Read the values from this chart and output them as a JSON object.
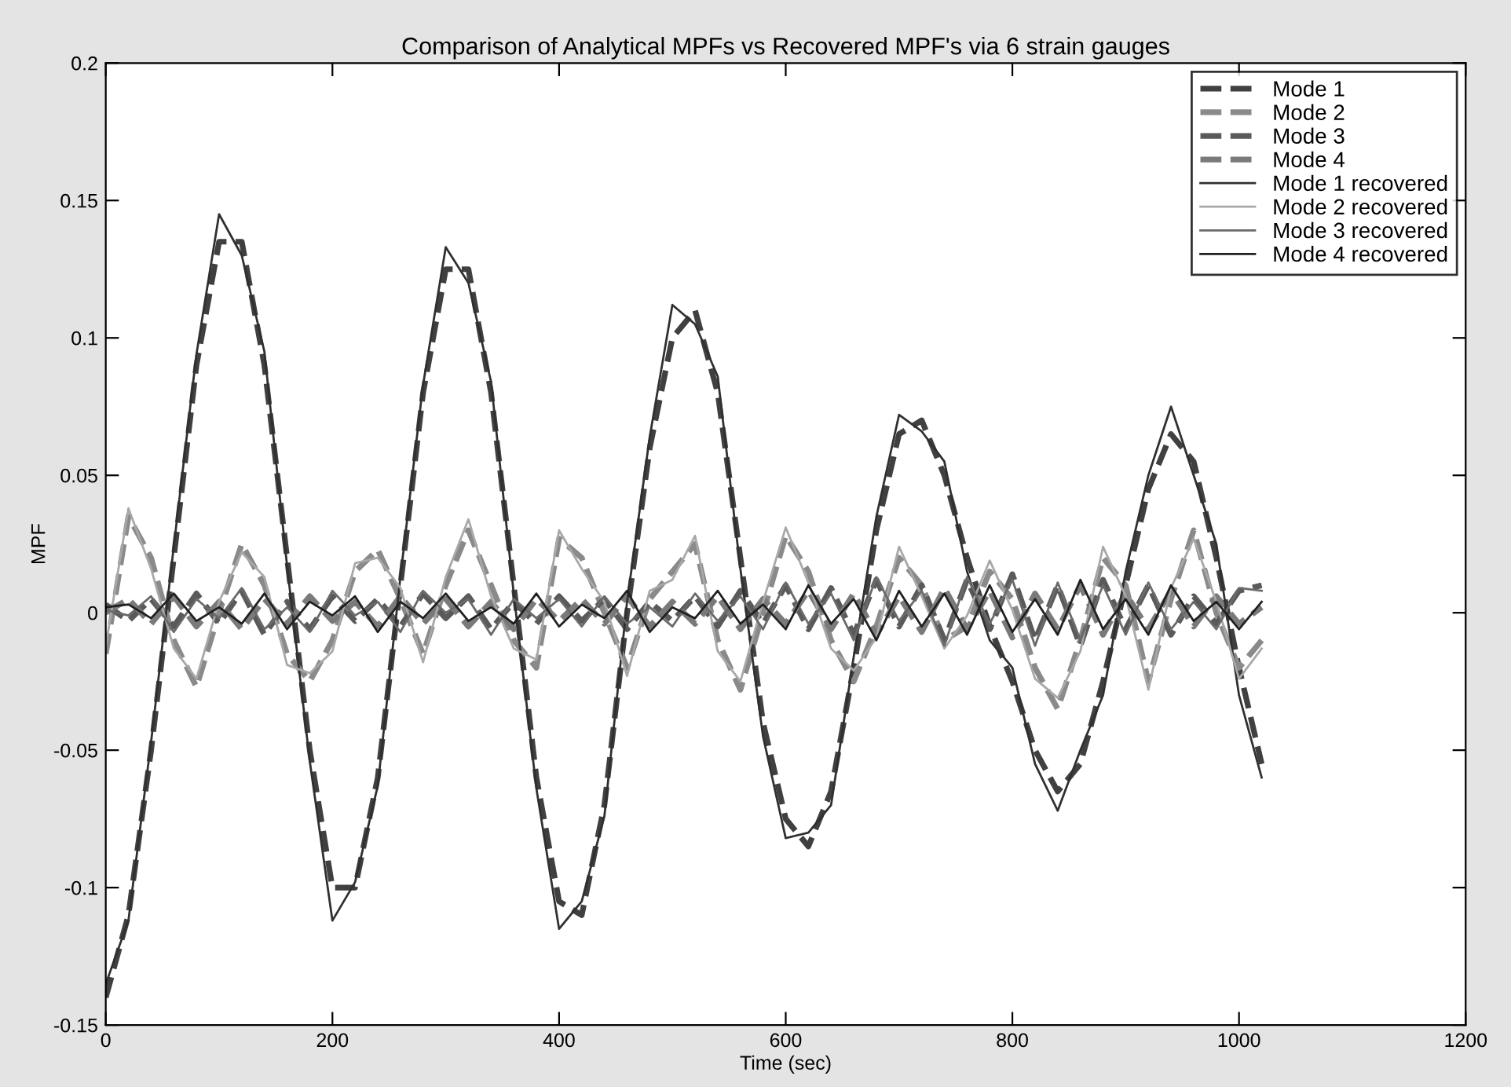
{
  "chart_data": {
    "type": "line",
    "title": "Comparison of Analytical MPFs vs Recovered MPF's via 6 strain gauges",
    "xlabel": "Time (sec)",
    "ylabel": "MPF",
    "x": [
      0,
      20,
      40,
      60,
      80,
      100,
      120,
      140,
      160,
      180,
      200,
      220,
      240,
      260,
      280,
      300,
      320,
      340,
      360,
      380,
      400,
      420,
      440,
      460,
      480,
      500,
      520,
      540,
      560,
      580,
      600,
      620,
      640,
      660,
      680,
      700,
      720,
      740,
      760,
      780,
      800,
      820,
      840,
      860,
      880,
      900,
      920,
      940,
      960,
      980,
      1000,
      1020
    ],
    "xlim": [
      0,
      1200
    ],
    "ylim": [
      -0.15,
      0.2
    ],
    "xticks": [
      0,
      200,
      400,
      600,
      800,
      1000,
      1200
    ],
    "yticks": [
      {
        "value": -0.15,
        "label": "-0.15"
      },
      {
        "value": -0.1,
        "label": "-0.1"
      },
      {
        "value": -0.05,
        "label": "-0.05"
      },
      0,
      0.05,
      0.1,
      0.15,
      0.2
    ],
    "grid": false,
    "legend": "top right",
    "series": [
      {
        "name": "Mode 1",
        "color": "#404040",
        "line_style": "dashed",
        "values": [
          -0.14,
          -0.11,
          -0.05,
          0.02,
          0.09,
          0.135,
          0.135,
          0.09,
          0.02,
          -0.05,
          -0.1,
          -0.1,
          -0.06,
          0.01,
          0.08,
          0.125,
          0.125,
          0.08,
          0.01,
          -0.06,
          -0.105,
          -0.11,
          -0.07,
          0.0,
          0.06,
          0.1,
          0.11,
          0.08,
          0.02,
          -0.04,
          -0.075,
          -0.085,
          -0.065,
          -0.02,
          0.03,
          0.065,
          0.07,
          0.05,
          0.02,
          -0.005,
          -0.025,
          -0.05,
          -0.065,
          -0.055,
          -0.025,
          0.01,
          0.045,
          0.065,
          0.055,
          0.02,
          -0.02,
          -0.055
        ]
      },
      {
        "name": "Mode 2",
        "color": "#8a8a8a",
        "line_style": "dashed",
        "values": [
          -0.015,
          0.035,
          0.02,
          -0.01,
          -0.027,
          0.0,
          0.025,
          0.01,
          -0.015,
          -0.025,
          -0.01,
          0.015,
          0.023,
          0.005,
          -0.015,
          0.01,
          0.03,
          0.01,
          -0.01,
          -0.02,
          0.027,
          0.02,
          0.0,
          -0.02,
          0.005,
          0.015,
          0.025,
          -0.01,
          -0.028,
          0.0,
          0.028,
          0.015,
          -0.01,
          -0.025,
          -0.005,
          0.02,
          0.01,
          -0.01,
          -0.005,
          0.015,
          0.005,
          -0.02,
          -0.035,
          -0.01,
          0.02,
          0.01,
          -0.025,
          0.005,
          0.03,
          0.0,
          -0.02,
          -0.01
        ]
      },
      {
        "name": "Mode 3",
        "color": "#5a5a5a",
        "line_style": "dashed",
        "values": [
          0.003,
          -0.003,
          0.005,
          -0.005,
          0.007,
          -0.004,
          0.008,
          -0.008,
          0.004,
          -0.006,
          0.006,
          -0.003,
          0.005,
          -0.005,
          0.007,
          -0.002,
          0.006,
          -0.006,
          0.004,
          -0.004,
          0.006,
          -0.003,
          0.005,
          -0.006,
          0.004,
          -0.003,
          0.006,
          -0.005,
          0.008,
          -0.004,
          0.01,
          -0.006,
          0.009,
          -0.008,
          0.012,
          -0.005,
          0.01,
          -0.01,
          0.012,
          -0.006,
          0.014,
          -0.01,
          0.01,
          -0.012,
          0.012,
          -0.006,
          0.01,
          -0.008,
          0.006,
          -0.004,
          0.008,
          0.01
        ]
      },
      {
        "name": "Mode 4",
        "color": "#7a7a7a",
        "line_style": "dashed",
        "values": [
          0.0,
          0.005,
          -0.004,
          0.006,
          -0.005,
          0.004,
          -0.006,
          0.005,
          -0.004,
          0.006,
          -0.003,
          0.004,
          -0.005,
          0.006,
          -0.004,
          0.005,
          -0.005,
          0.004,
          -0.006,
          0.005,
          -0.003,
          0.005,
          -0.004,
          0.006,
          -0.005,
          0.004,
          -0.004,
          0.006,
          -0.006,
          0.005,
          -0.004,
          0.008,
          -0.006,
          0.007,
          -0.008,
          0.006,
          -0.007,
          0.009,
          -0.006,
          0.008,
          -0.009,
          0.007,
          -0.006,
          0.01,
          -0.008,
          0.007,
          -0.006,
          0.008,
          -0.005,
          0.006,
          -0.004,
          0.002
        ]
      },
      {
        "name": "Mode 1 recovered",
        "color": "#303030",
        "line_style": "solid",
        "values": [
          -0.135,
          -0.112,
          -0.047,
          0.024,
          0.094,
          0.145,
          0.13,
          0.095,
          0.017,
          -0.054,
          -0.112,
          -0.098,
          -0.063,
          0.013,
          0.083,
          0.133,
          0.12,
          0.084,
          0.007,
          -0.064,
          -0.115,
          -0.105,
          -0.074,
          0.004,
          0.064,
          0.112,
          0.105,
          0.086,
          0.016,
          -0.045,
          -0.082,
          -0.08,
          -0.07,
          -0.016,
          0.035,
          0.072,
          0.066,
          0.055,
          0.015,
          -0.01,
          -0.02,
          -0.055,
          -0.072,
          -0.05,
          -0.03,
          0.015,
          0.05,
          0.075,
          0.05,
          0.025,
          -0.03,
          -0.06
        ]
      },
      {
        "name": "Mode 2 recovered",
        "color": "#a8a8a8",
        "line_style": "solid",
        "values": [
          -0.012,
          0.038,
          0.016,
          -0.013,
          -0.024,
          0.004,
          0.022,
          0.013,
          -0.019,
          -0.022,
          -0.014,
          0.018,
          0.02,
          0.009,
          -0.018,
          0.013,
          0.034,
          0.006,
          -0.013,
          -0.017,
          0.03,
          0.016,
          0.004,
          -0.023,
          0.008,
          0.012,
          0.028,
          -0.014,
          -0.025,
          0.004,
          0.031,
          0.011,
          -0.013,
          -0.021,
          -0.009,
          0.024,
          0.006,
          -0.013,
          -0.001,
          0.019,
          0.001,
          -0.024,
          -0.031,
          -0.014,
          0.024,
          0.006,
          -0.028,
          0.009,
          0.027,
          0.004,
          -0.024,
          -0.013
        ]
      },
      {
        "name": "Mode 3 recovered",
        "color": "#6a6a6a",
        "line_style": "solid",
        "values": [
          0.001,
          -0.001,
          0.006,
          -0.007,
          0.005,
          -0.002,
          0.009,
          -0.006,
          0.002,
          -0.007,
          0.008,
          -0.001,
          0.004,
          -0.007,
          0.008,
          0.0,
          0.005,
          -0.008,
          0.005,
          -0.002,
          0.005,
          -0.005,
          0.006,
          -0.004,
          0.002,
          -0.005,
          0.007,
          -0.003,
          0.006,
          -0.006,
          0.011,
          -0.004,
          0.007,
          -0.01,
          0.013,
          -0.003,
          0.008,
          -0.012,
          0.013,
          -0.004,
          0.012,
          -0.012,
          0.011,
          -0.01,
          0.01,
          -0.008,
          0.011,
          -0.006,
          0.004,
          -0.006,
          0.009,
          0.008
        ]
      },
      {
        "name": "Mode 4 recovered",
        "color": "#202020",
        "line_style": "solid",
        "values": [
          0.002,
          0.003,
          -0.002,
          0.007,
          -0.003,
          0.002,
          -0.004,
          0.007,
          -0.006,
          0.004,
          -0.001,
          0.006,
          -0.007,
          0.004,
          -0.002,
          0.007,
          -0.003,
          0.002,
          -0.004,
          0.007,
          -0.005,
          0.003,
          -0.002,
          0.008,
          -0.007,
          0.002,
          -0.002,
          0.008,
          -0.004,
          0.003,
          -0.006,
          0.01,
          -0.004,
          0.005,
          -0.01,
          0.008,
          -0.005,
          0.007,
          -0.008,
          0.01,
          -0.007,
          0.005,
          -0.008,
          0.012,
          -0.006,
          0.005,
          -0.008,
          0.01,
          -0.003,
          0.004,
          -0.006,
          0.004
        ]
      }
    ]
  }
}
